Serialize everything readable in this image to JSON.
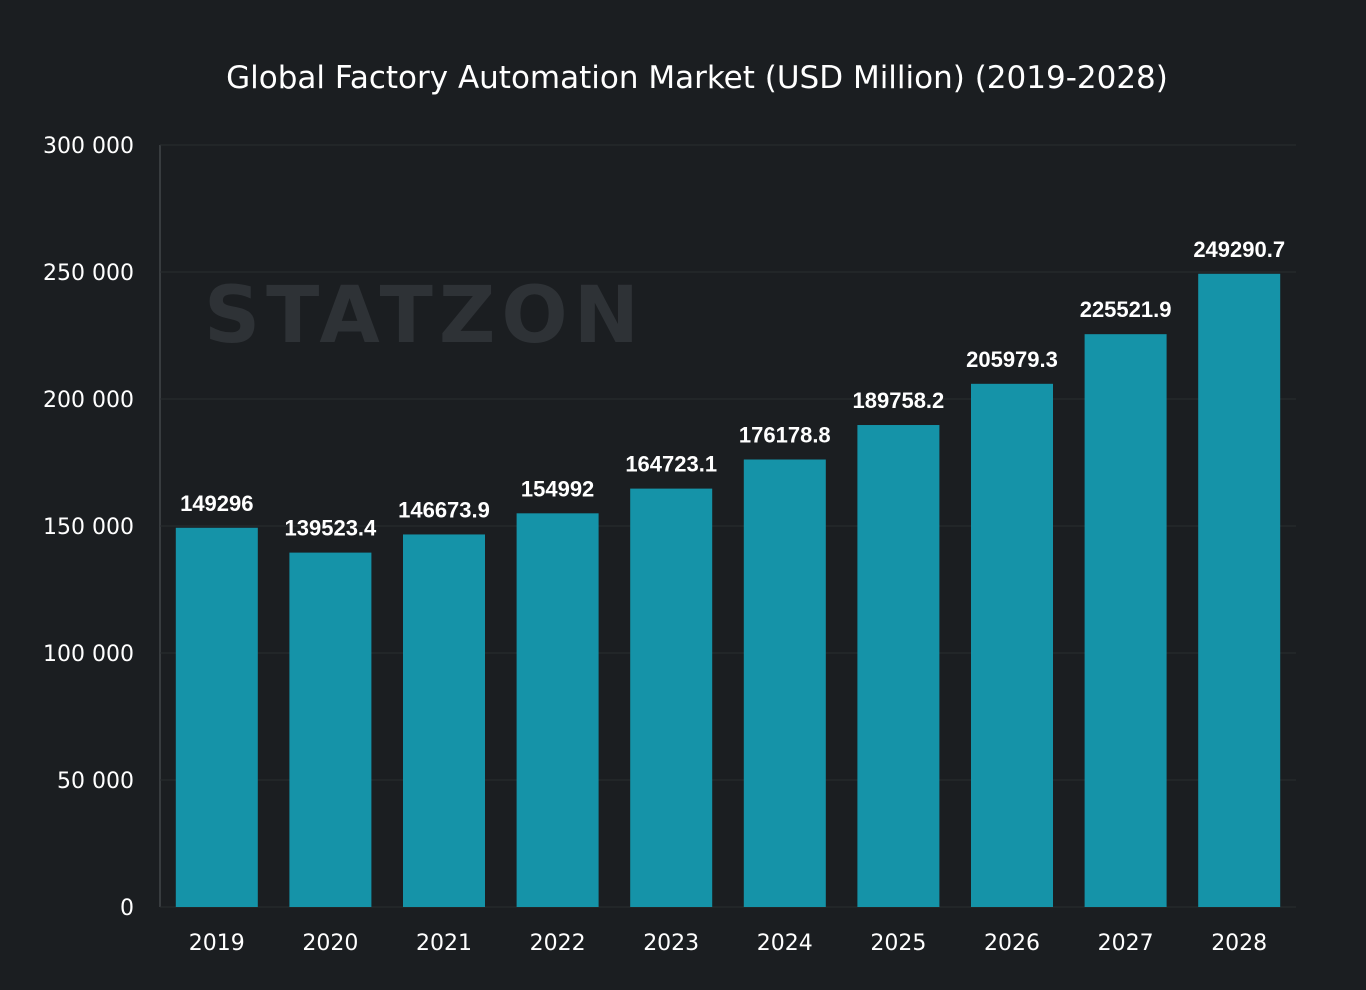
{
  "chart_data": {
    "type": "bar",
    "title": "Global Factory Automation Market (USD Million) (2019-2028)",
    "xlabel": "",
    "ylabel": "",
    "categories": [
      "2019",
      "2020",
      "2021",
      "2022",
      "2023",
      "2024",
      "2025",
      "2026",
      "2027",
      "2028"
    ],
    "values": [
      149296,
      139523.4,
      146673.9,
      154992,
      164723.1,
      176178.8,
      189758.2,
      205979.3,
      225521.9,
      249290.7
    ],
    "data_labels": [
      "149296",
      "139523.4",
      "146673.9",
      "154992",
      "164723.1",
      "176178.8",
      "189758.2",
      "205979.3",
      "225521.9",
      "249290.7"
    ],
    "ylim": [
      0,
      300000
    ],
    "yticks": [
      0,
      50000,
      100000,
      150000,
      200000,
      250000,
      300000
    ],
    "ytick_labels": [
      "0",
      "50 000",
      "100 000",
      "150 000",
      "200 000",
      "250 000",
      "300 000"
    ],
    "grid": true,
    "legend": "none",
    "colors": {
      "background": "#1b1e21",
      "bar": "#1593a8",
      "grid": "#2a2d30",
      "text": "#ffffff"
    },
    "watermark": "STATZON"
  }
}
